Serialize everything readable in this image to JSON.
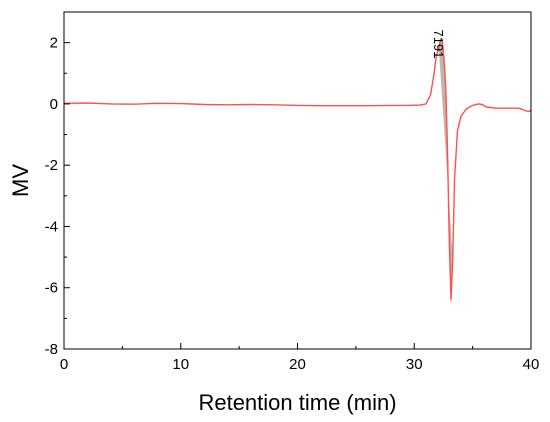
{
  "chart_data": {
    "type": "line",
    "xlabel": "Retention time (min)",
    "ylabel": "MV",
    "xlim": [
      0,
      40
    ],
    "ylim": [
      -8,
      3
    ],
    "x_ticks": [
      "0",
      "10",
      "20",
      "30",
      "40"
    ],
    "y_ticks": [
      "2",
      "0",
      "-2",
      "-4",
      "-6",
      "-8"
    ],
    "grid": false,
    "line_color": "#ff5050",
    "peak_fill_color": "#8b7a6a",
    "annotations": [
      {
        "text": "7191",
        "x": 32.2,
        "y": 2.1,
        "rotation_deg": 90
      }
    ],
    "series": [
      {
        "points": [
          [
            0,
            0.02
          ],
          [
            2,
            0.03
          ],
          [
            4,
            0.0
          ],
          [
            6,
            -0.01
          ],
          [
            8,
            0.02
          ],
          [
            10,
            0.01
          ],
          [
            12,
            -0.02
          ],
          [
            14,
            -0.03
          ],
          [
            16,
            -0.02
          ],
          [
            18,
            -0.03
          ],
          [
            20,
            -0.05
          ],
          [
            22,
            -0.06
          ],
          [
            24,
            -0.06
          ],
          [
            26,
            -0.06
          ],
          [
            28,
            -0.05
          ],
          [
            29.5,
            -0.05
          ],
          [
            30.5,
            -0.04
          ],
          [
            31.0,
            0.0
          ],
          [
            31.4,
            0.3
          ],
          [
            31.7,
            1.0
          ],
          [
            31.9,
            1.6
          ],
          [
            32.1,
            1.8
          ],
          [
            32.25,
            2.1
          ],
          [
            32.4,
            2.05
          ],
          [
            32.55,
            1.5
          ],
          [
            32.7,
            0.5
          ],
          [
            32.85,
            -1.5
          ],
          [
            33.0,
            -4.5
          ],
          [
            33.15,
            -6.4
          ],
          [
            33.3,
            -5.0
          ],
          [
            33.45,
            -2.5
          ],
          [
            33.7,
            -0.9
          ],
          [
            34.0,
            -0.4
          ],
          [
            34.5,
            -0.15
          ],
          [
            35.0,
            -0.05
          ],
          [
            35.5,
            0.0
          ],
          [
            35.8,
            -0.02
          ],
          [
            36.2,
            -0.1
          ],
          [
            37.0,
            -0.14
          ],
          [
            38.0,
            -0.14
          ],
          [
            39.0,
            -0.14
          ],
          [
            39.5,
            -0.22
          ],
          [
            39.8,
            -0.25
          ],
          [
            40.0,
            -0.2
          ]
        ]
      }
    ],
    "shaded_regions": [
      {
        "points": [
          [
            32.1,
            1.8
          ],
          [
            32.25,
            2.1
          ],
          [
            32.4,
            2.05
          ],
          [
            32.55,
            1.5
          ],
          [
            32.7,
            0.5
          ],
          [
            32.85,
            -1.5
          ],
          [
            33.0,
            -4.5
          ],
          [
            33.15,
            -6.4
          ],
          [
            33.3,
            -5.0
          ]
        ]
      }
    ]
  }
}
